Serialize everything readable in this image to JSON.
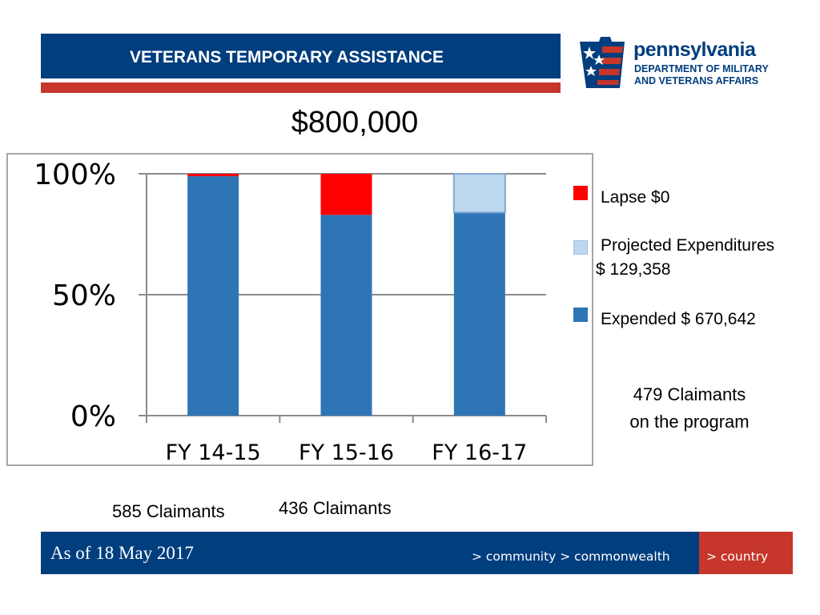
{
  "header": {
    "title": "VETERANS TEMPORARY ASSISTANCE"
  },
  "logo": {
    "name": "pennsylvania",
    "department_line1": "DEPARTMENT OF MILITARY",
    "department_line2": "AND VETERANS AFFAIRS"
  },
  "budget": "$800,000",
  "chart_data": {
    "type": "bar",
    "stacked": true,
    "percent_stacked": true,
    "categories": [
      "FY 14-15",
      "FY 15-16",
      "FY 16-17"
    ],
    "series": [
      {
        "name": "Expended",
        "color": "#2e75b6",
        "values": [
          99,
          83,
          84
        ]
      },
      {
        "name": "Projected Expenditures",
        "color": "#bdd7ee",
        "values": [
          0,
          0,
          16
        ]
      },
      {
        "name": "Lapse",
        "color": "#ff0000",
        "values": [
          1,
          17,
          0
        ]
      }
    ],
    "y_ticks": [
      "0%",
      "50%",
      "100%"
    ],
    "ylim": [
      0,
      100
    ],
    "grid": true,
    "legend_position": "right"
  },
  "legend": {
    "lapse": "Lapse $0",
    "projected": "Projected Expenditures",
    "projected_amount": "$ 129,358",
    "expended": "Expended $ 670,642",
    "colors": {
      "lapse": "#ff0000",
      "projected": "#bdd7ee",
      "expended": "#2e75b6"
    }
  },
  "claimants": {
    "current_line1": "479 Claimants",
    "current_line2": "on the program",
    "fy1415": "585 Claimants",
    "fy1516": "436 Claimants"
  },
  "footer": {
    "date": "As of  18 May 2017",
    "tagline": "> community > commonwealth",
    "country": "> country"
  }
}
